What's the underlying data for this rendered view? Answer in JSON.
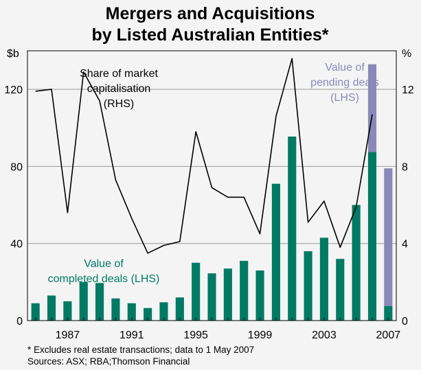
{
  "chart_data": {
    "type": "bar",
    "title_lines": [
      "Mergers and Acquisitions",
      "by Listed Australian Entities*"
    ],
    "left_unit": "$b",
    "right_unit": "%",
    "ylim_left": [
      0,
      140
    ],
    "ylim_right": [
      0,
      14
    ],
    "y_ticks_left": [
      "0",
      "40",
      "80",
      "120"
    ],
    "y_ticks_right": [
      "0",
      "4",
      "8",
      "12"
    ],
    "x_ticks": [
      "1987",
      "1991",
      "1995",
      "1999",
      "2003",
      "2007"
    ],
    "categories": [
      "1985",
      "1986",
      "1987",
      "1988",
      "1989",
      "1990",
      "1991",
      "1992",
      "1993",
      "1994",
      "1995",
      "1996",
      "1997",
      "1998",
      "1999",
      "2000",
      "2001",
      "2002",
      "2003",
      "2004",
      "2005",
      "2006",
      "2007"
    ],
    "series": [
      {
        "name": "Value of completed deals (LHS)",
        "type": "bar",
        "color": "#007a64",
        "values": [
          9,
          13,
          10,
          20,
          19.5,
          11.5,
          9,
          6.5,
          9.5,
          12,
          30,
          24.5,
          27,
          31,
          26,
          71,
          95.5,
          36,
          43,
          32,
          60,
          87.5,
          7.5
        ]
      },
      {
        "name": "Value of pending deals (LHS)",
        "type": "bar",
        "stacked_on": "Value of completed deals (LHS)",
        "color": "#8a88b8",
        "values": [
          0,
          0,
          0,
          0,
          0,
          0,
          0,
          0,
          0,
          0,
          0,
          0,
          0,
          0,
          0,
          0,
          0,
          0,
          0,
          0,
          0,
          45.5,
          71.5
        ]
      },
      {
        "name": "Share of market capitalisation (RHS)",
        "type": "line",
        "axis": "right",
        "color": "#000000",
        "values": [
          11.9,
          12.0,
          5.6,
          12.9,
          11.4,
          7.3,
          5.3,
          3.5,
          3.9,
          4.1,
          9.8,
          6.9,
          6.4,
          6.4,
          4.5,
          10.6,
          13.6,
          5.1,
          6.2,
          3.8,
          5.9,
          10.7,
          null
        ]
      }
    ],
    "annotations": {
      "line_label": [
        "Share of market",
        "capitalisation",
        "(RHS)"
      ],
      "pending_label": [
        "Value of",
        "pending deals",
        "(LHS)"
      ],
      "completed_label": [
        "Value of",
        "completed deals (LHS)"
      ]
    },
    "footnote": "*   Excludes real estate transactions; data to 1 May 2007",
    "sources": "Sources: ASX; RBA;Thomson Financial"
  }
}
